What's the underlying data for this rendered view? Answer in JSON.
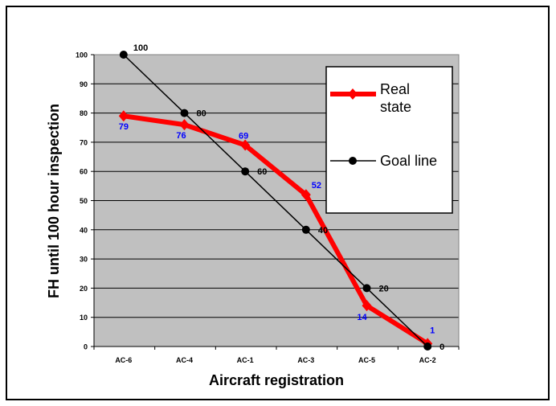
{
  "chart_data": {
    "type": "line",
    "categories": [
      "AC-6",
      "AC-4",
      "AC-1",
      "AC-3",
      "AC-5",
      "AC-2"
    ],
    "series": [
      {
        "name": "Real state",
        "values": [
          79,
          76,
          69,
          52,
          14,
          1
        ],
        "color": "#ff0000",
        "label_color": "#0000ff",
        "marker": "diamond"
      },
      {
        "name": "Goal line",
        "values": [
          100,
          80,
          60,
          40,
          20,
          0
        ],
        "color": "#000000",
        "label_color": "#000000",
        "marker": "circle"
      }
    ],
    "xlabel": "Aircraft  registration",
    "ylabel": "FH until 100 hour inspection",
    "ylim": [
      0,
      100
    ],
    "yticks": [
      0,
      10,
      20,
      30,
      40,
      50,
      60,
      70,
      80,
      90,
      100
    ],
    "grid": true,
    "legend_position": "top-right",
    "plot_background": "#c0c0c0"
  }
}
